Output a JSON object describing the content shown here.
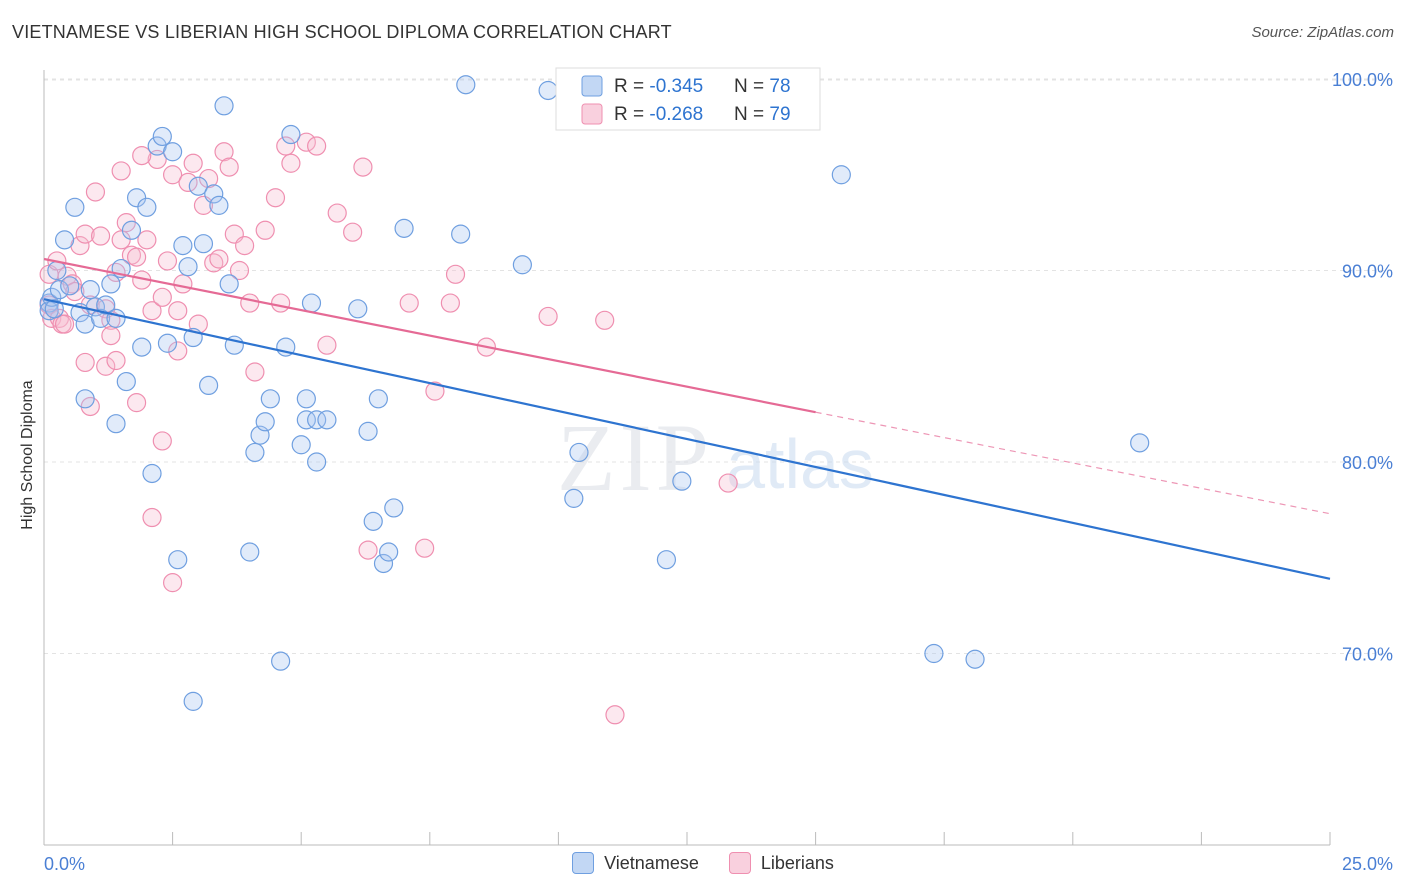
{
  "title": "VIETNAMESE VS LIBERIAN HIGH SCHOOL DIPLOMA CORRELATION CHART",
  "source": "Source: ZipAtlas.com",
  "watermark": {
    "zip": "ZIP",
    "atlas": "atlas"
  },
  "colors": {
    "blue": "#6f9fe0",
    "blue_fill": "#a8c6f0",
    "blue_line": "#2e74d0",
    "pink": "#ef8fb0",
    "pink_fill": "#f7bcd0",
    "pink_line": "#e56a95",
    "tick_label": "#4a7fd4"
  },
  "legend": {
    "rows": [
      {
        "r_label": "R = ",
        "r_value": "-0.345",
        "n_label": "N = ",
        "n_value": "78"
      },
      {
        "r_label": "R = ",
        "r_value": "-0.268",
        "n_label": "N = ",
        "n_value": "79"
      }
    ]
  },
  "chart_data": {
    "type": "scatter",
    "title": "VIETNAMESE VS LIBERIAN HIGH SCHOOL DIPLOMA CORRELATION CHART",
    "xlabel": "",
    "ylabel": "High School Diploma",
    "xlim": [
      0,
      25
    ],
    "ylim": [
      60,
      103
    ],
    "x_tick_labels": [
      "0.0%",
      "25.0%"
    ],
    "y_ticks": [
      70,
      80,
      90,
      100
    ],
    "y_tick_labels": [
      "70.0%",
      "80.0%",
      "90.0%",
      "100.0%"
    ],
    "grid": true,
    "legend_position": "top-center",
    "series": [
      {
        "name": "Vietnamese",
        "color": "#6f9fe0",
        "trend": {
          "x0": 0,
          "y0": 88.5,
          "x1": 25,
          "y1": 73.9
        },
        "points": [
          [
            0.1,
            88.3
          ],
          [
            0.1,
            87.9
          ],
          [
            0.15,
            88.6
          ],
          [
            0.2,
            88.0
          ],
          [
            0.25,
            90.0
          ],
          [
            0.3,
            89.0
          ],
          [
            0.4,
            91.6
          ],
          [
            0.5,
            89.2
          ],
          [
            0.6,
            93.3
          ],
          [
            0.7,
            87.8
          ],
          [
            0.8,
            87.2
          ],
          [
            0.9,
            89.0
          ],
          [
            1.0,
            88.1
          ],
          [
            1.1,
            87.5
          ],
          [
            1.2,
            88.2
          ],
          [
            1.3,
            89.3
          ],
          [
            1.4,
            87.5
          ],
          [
            1.5,
            90.1
          ],
          [
            1.6,
            84.2
          ],
          [
            1.7,
            92.1
          ],
          [
            1.8,
            93.8
          ],
          [
            1.9,
            86.0
          ],
          [
            2.0,
            93.3
          ],
          [
            2.1,
            79.4
          ],
          [
            2.2,
            96.5
          ],
          [
            2.3,
            97.0
          ],
          [
            2.4,
            86.2
          ],
          [
            2.5,
            96.2
          ],
          [
            2.6,
            74.9
          ],
          [
            2.7,
            91.3
          ],
          [
            2.8,
            90.2
          ],
          [
            2.9,
            86.5
          ],
          [
            3.0,
            94.4
          ],
          [
            3.1,
            91.4
          ],
          [
            3.2,
            84.0
          ],
          [
            3.3,
            94.0
          ],
          [
            3.4,
            93.4
          ],
          [
            3.5,
            98.6
          ],
          [
            3.6,
            89.3
          ],
          [
            3.7,
            86.1
          ],
          [
            4.0,
            75.3
          ],
          [
            4.1,
            80.5
          ],
          [
            4.2,
            81.4
          ],
          [
            4.3,
            82.1
          ],
          [
            4.4,
            83.3
          ],
          [
            4.6,
            69.6
          ],
          [
            4.7,
            86.0
          ],
          [
            4.8,
            97.1
          ],
          [
            5.0,
            80.9
          ],
          [
            5.1,
            83.3
          ],
          [
            5.2,
            88.3
          ],
          [
            5.3,
            80.0
          ],
          [
            5.1,
            82.2
          ],
          [
            5.3,
            82.2
          ],
          [
            5.5,
            82.2
          ],
          [
            6.1,
            88.0
          ],
          [
            6.3,
            81.6
          ],
          [
            6.4,
            76.9
          ],
          [
            6.5,
            83.3
          ],
          [
            6.6,
            74.7
          ],
          [
            6.7,
            75.3
          ],
          [
            6.8,
            77.6
          ],
          [
            7.0,
            92.2
          ],
          [
            2.9,
            67.5
          ],
          [
            1.4,
            82.0
          ],
          [
            0.8,
            83.3
          ],
          [
            8.1,
            91.9
          ],
          [
            8.2,
            99.7
          ],
          [
            9.3,
            90.3
          ],
          [
            9.8,
            99.4
          ],
          [
            10.3,
            78.1
          ],
          [
            10.4,
            80.5
          ],
          [
            12.1,
            74.9
          ],
          [
            12.4,
            79.0
          ],
          [
            15.5,
            95.0
          ],
          [
            17.3,
            70.0
          ],
          [
            18.1,
            69.7
          ],
          [
            21.3,
            81.0
          ]
        ]
      },
      {
        "name": "Liberians",
        "color": "#ef8fb0",
        "trend": {
          "x0": 0,
          "y0": 90.6,
          "x1": 15.0,
          "y1": 82.6,
          "dash_x1": 25,
          "dash_y1": 77.3
        },
        "points": [
          [
            0.1,
            89.8
          ],
          [
            0.1,
            88.2
          ],
          [
            0.15,
            87.5
          ],
          [
            0.25,
            90.5
          ],
          [
            0.3,
            87.5
          ],
          [
            0.35,
            87.2
          ],
          [
            0.45,
            89.7
          ],
          [
            0.55,
            89.3
          ],
          [
            0.6,
            88.9
          ],
          [
            0.7,
            91.3
          ],
          [
            0.8,
            91.9
          ],
          [
            0.9,
            88.2
          ],
          [
            1.0,
            94.1
          ],
          [
            1.1,
            91.8
          ],
          [
            1.2,
            88.0
          ],
          [
            1.3,
            87.4
          ],
          [
            1.4,
            89.9
          ],
          [
            1.5,
            91.6
          ],
          [
            1.6,
            92.5
          ],
          [
            1.7,
            90.8
          ],
          [
            1.8,
            90.7
          ],
          [
            1.9,
            89.5
          ],
          [
            2.0,
            91.6
          ],
          [
            2.1,
            87.9
          ],
          [
            2.2,
            95.8
          ],
          [
            2.3,
            88.6
          ],
          [
            2.4,
            90.5
          ],
          [
            2.5,
            95.0
          ],
          [
            2.6,
            85.8
          ],
          [
            2.7,
            89.3
          ],
          [
            2.8,
            94.6
          ],
          [
            2.9,
            95.6
          ],
          [
            3.0,
            87.2
          ],
          [
            3.1,
            93.4
          ],
          [
            3.2,
            94.8
          ],
          [
            3.3,
            90.4
          ],
          [
            3.4,
            90.6
          ],
          [
            3.5,
            96.2
          ],
          [
            3.6,
            95.4
          ],
          [
            3.7,
            91.9
          ],
          [
            3.8,
            90.0
          ],
          [
            4.0,
            88.3
          ],
          [
            4.1,
            84.7
          ],
          [
            4.3,
            92.1
          ],
          [
            4.6,
            88.3
          ],
          [
            4.7,
            96.5
          ],
          [
            4.8,
            95.6
          ],
          [
            5.1,
            96.7
          ],
          [
            5.5,
            86.1
          ],
          [
            5.7,
            93.0
          ],
          [
            6.2,
            95.4
          ],
          [
            6.3,
            75.4
          ],
          [
            7.1,
            88.3
          ],
          [
            7.4,
            75.5
          ],
          [
            7.6,
            83.7
          ],
          [
            7.9,
            88.3
          ],
          [
            8.0,
            89.8
          ],
          [
            8.6,
            86.0
          ],
          [
            9.8,
            87.6
          ],
          [
            10.9,
            87.4
          ],
          [
            11.1,
            66.8
          ],
          [
            13.3,
            78.9
          ],
          [
            0.4,
            87.2
          ],
          [
            0.8,
            85.2
          ],
          [
            0.9,
            82.9
          ],
          [
            1.2,
            85.0
          ],
          [
            1.3,
            86.6
          ],
          [
            1.4,
            85.3
          ],
          [
            1.8,
            83.1
          ],
          [
            2.1,
            77.1
          ],
          [
            2.3,
            81.1
          ],
          [
            2.5,
            73.7
          ],
          [
            1.5,
            95.2
          ],
          [
            1.9,
            96.0
          ],
          [
            2.6,
            87.9
          ],
          [
            3.9,
            91.3
          ],
          [
            4.5,
            93.8
          ],
          [
            5.3,
            96.5
          ],
          [
            6.0,
            92.0
          ]
        ]
      }
    ]
  }
}
